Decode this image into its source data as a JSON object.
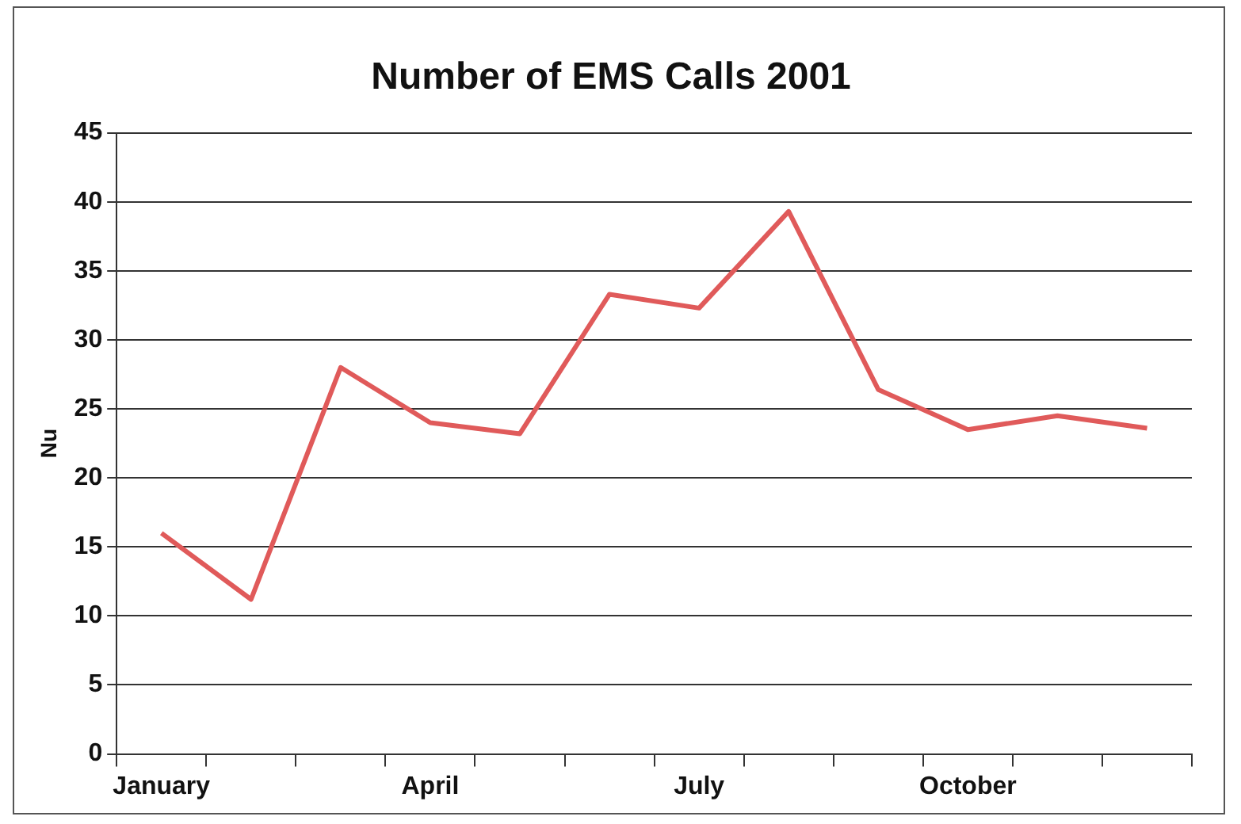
{
  "chart_data": {
    "type": "line",
    "title": "Number of EMS Calls 2001",
    "ylabel": "Nu",
    "categories": [
      "January",
      null,
      null,
      "April",
      null,
      null,
      "July",
      null,
      null,
      "October",
      null,
      null
    ],
    "series": [
      {
        "color": "#e05a5a",
        "values": [
          16,
          11.2,
          28,
          24,
          23.2,
          33.3,
          32.3,
          39.3,
          26.4,
          23.5,
          24.5,
          23.6
        ]
      }
    ],
    "ylim": [
      0,
      45
    ],
    "yticks": [
      0,
      5,
      10,
      15,
      20,
      25,
      30,
      35,
      40,
      45
    ],
    "grid": "y",
    "legend": false,
    "marker": "none",
    "line_style": "solid"
  }
}
